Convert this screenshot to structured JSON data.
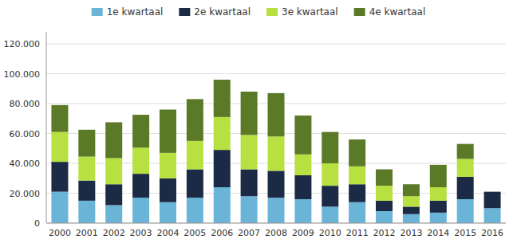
{
  "chart_data": {
    "type": "bar",
    "stacked": true,
    "grid": true,
    "legend": "top",
    "categories": [
      "2000",
      "2001",
      "2002",
      "2003",
      "2004",
      "2005",
      "2006",
      "2007",
      "2008",
      "2009",
      "2010",
      "2011",
      "2012",
      "2013",
      "2014",
      "2015",
      "2016"
    ],
    "series": [
      {
        "name": "1e kwartaal",
        "color": "#6ab4d8",
        "values": [
          21000,
          15000,
          12000,
          17000,
          14000,
          17000,
          24000,
          18000,
          17000,
          16000,
          11000,
          14000,
          8000,
          6000,
          7000,
          16000,
          10000
        ]
      },
      {
        "name": "2e kwartaal",
        "color": "#1c2b45",
        "values": [
          20000,
          13500,
          14000,
          16000,
          16000,
          19000,
          25000,
          18000,
          18000,
          16000,
          14000,
          12000,
          7000,
          5000,
          8000,
          15000,
          11000
        ]
      },
      {
        "name": "3e kwartaal",
        "color": "#b8e040",
        "values": [
          20000,
          16000,
          17500,
          17500,
          17000,
          19000,
          22000,
          23000,
          23000,
          14000,
          15000,
          12000,
          10000,
          7000,
          9000,
          12000,
          0
        ]
      },
      {
        "name": "4e kwartaal",
        "color": "#5a7a28",
        "values": [
          18000,
          18000,
          24000,
          22000,
          29000,
          28000,
          25000,
          29000,
          29000,
          26000,
          21000,
          18000,
          11000,
          8000,
          15000,
          10000,
          0
        ]
      }
    ],
    "ylim": [
      0,
      128000
    ],
    "yticks": [
      0,
      {
        "value": 20000,
        "label": "20.000"
      },
      {
        "value": 40000,
        "label": "40.000"
      },
      {
        "value": 60000,
        "label": "60.000"
      },
      {
        "value": 80000,
        "label": "80.000"
      },
      {
        "value": 100000,
        "label": "100.000"
      },
      {
        "value": 120000,
        "label": "120.000"
      }
    ]
  }
}
